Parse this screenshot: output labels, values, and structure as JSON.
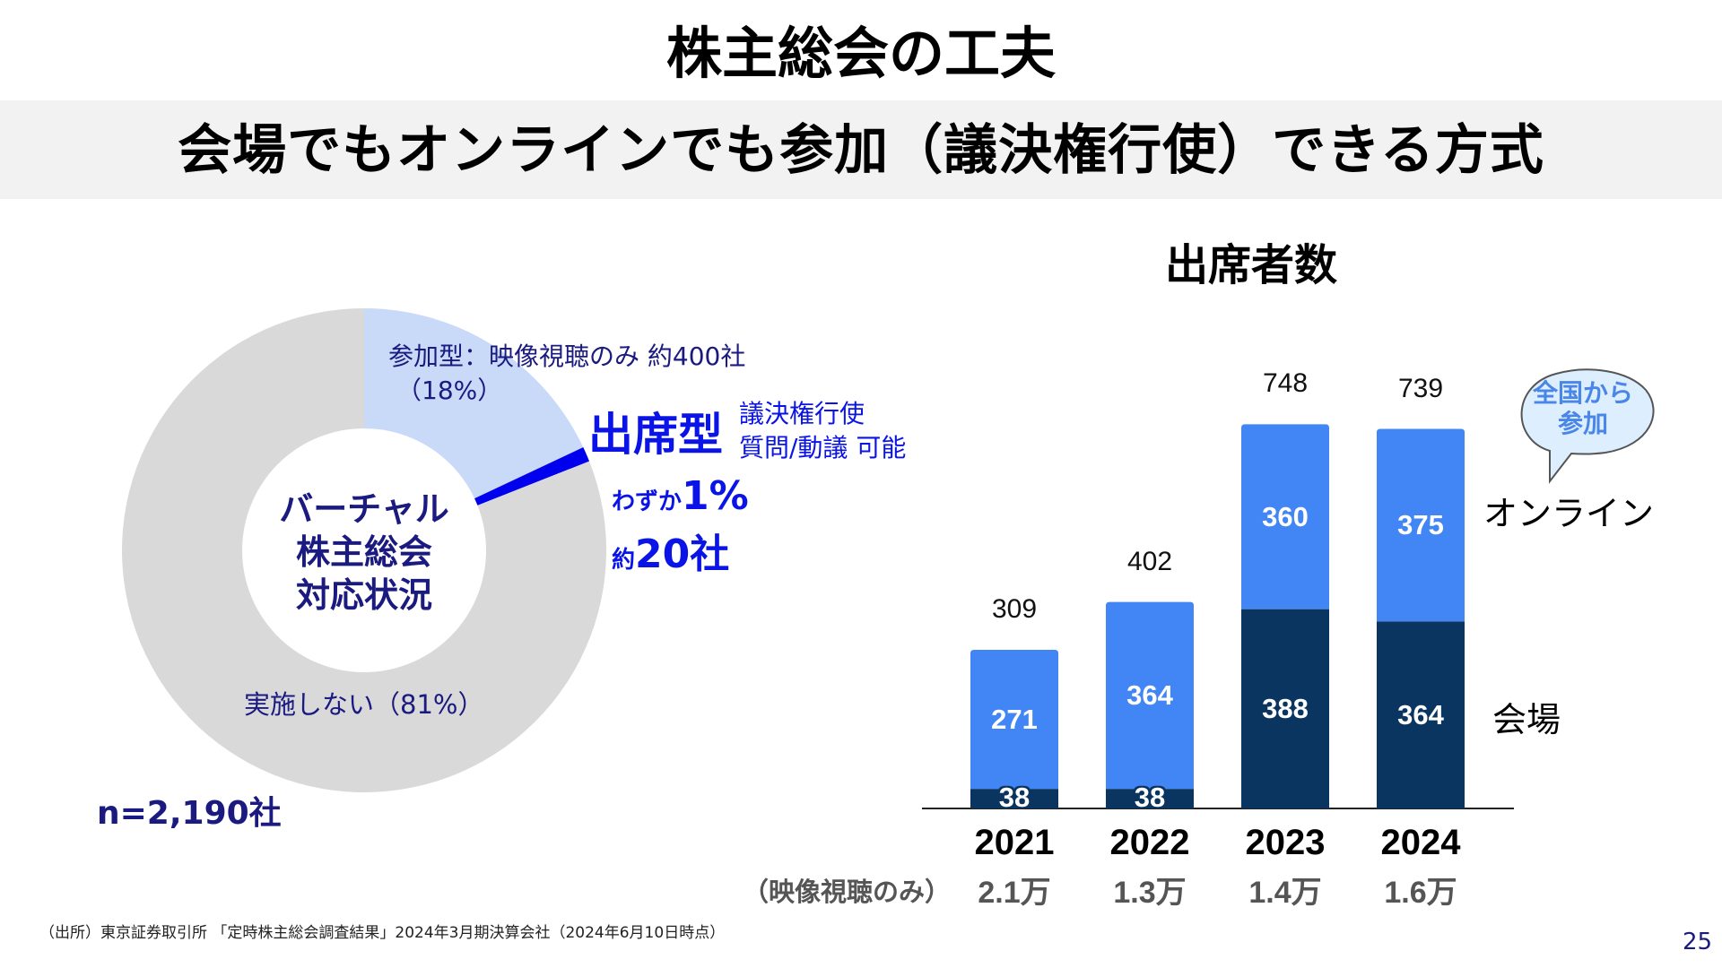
{
  "slide": {
    "title": "株主総会の工夫",
    "subtitle": "会場でもオンラインでも参加（議決権行使）できる方式",
    "source_note": "（出所）東京証券取引所 「定時株主総会調査結果」2024年3月期決算会社（2024年6月10日時点）",
    "page_number": "25"
  },
  "donut": {
    "center_lines": [
      "バーチャル",
      "株主総会",
      "対応状況"
    ],
    "sample_size": "n=2,190社",
    "participation_label": "参加型：映像視聴のみ 約400社",
    "participation_pct": "（18%）",
    "attendance_title": "出席型",
    "attendance_desc_1": "議決権行使",
    "attendance_desc_2": "質問/動議 可能",
    "attendance_small_1": "わずか",
    "attendance_big_1": "1%",
    "attendance_small_2": "約",
    "attendance_big_2": "20社",
    "none_label": "実施しない（81%）"
  },
  "bar_chart_extra": {
    "bubble_line_1": "全国から",
    "bubble_line_2": "参加",
    "legend_online": "オンライン",
    "legend_venue": "会場",
    "sub_row_label": "（映像視聴のみ）",
    "sub_row_values": [
      "2.1万",
      "1.3万",
      "1.4万",
      "1.6万"
    ]
  },
  "colors": {
    "participation": "#c9daf8",
    "attendance": "#0000ee",
    "none": "#d9d9d9",
    "online": "#4285f4",
    "venue": "#0b3561",
    "navy_text": "#1a1a80"
  },
  "chart_data": [
    {
      "type": "pie",
      "title": "バーチャル株主総会対応状況",
      "labels": [
        "参加型：映像視聴のみ",
        "出席型",
        "実施しない"
      ],
      "values": [
        18,
        1,
        81
      ],
      "unit": "%",
      "n": 2190
    },
    {
      "type": "bar",
      "stacked": true,
      "title": "出席者数",
      "categories": [
        "2021",
        "2022",
        "2023",
        "2024"
      ],
      "series": [
        {
          "name": "会場",
          "values": [
            38,
            38,
            388,
            364
          ]
        },
        {
          "name": "オンライン",
          "values": [
            271,
            364,
            360,
            375
          ]
        }
      ],
      "totals": [
        309,
        402,
        748,
        739
      ],
      "xlabel": "",
      "ylabel": "",
      "ylim": [
        0,
        800
      ],
      "grid": false,
      "legend": "right"
    }
  ]
}
